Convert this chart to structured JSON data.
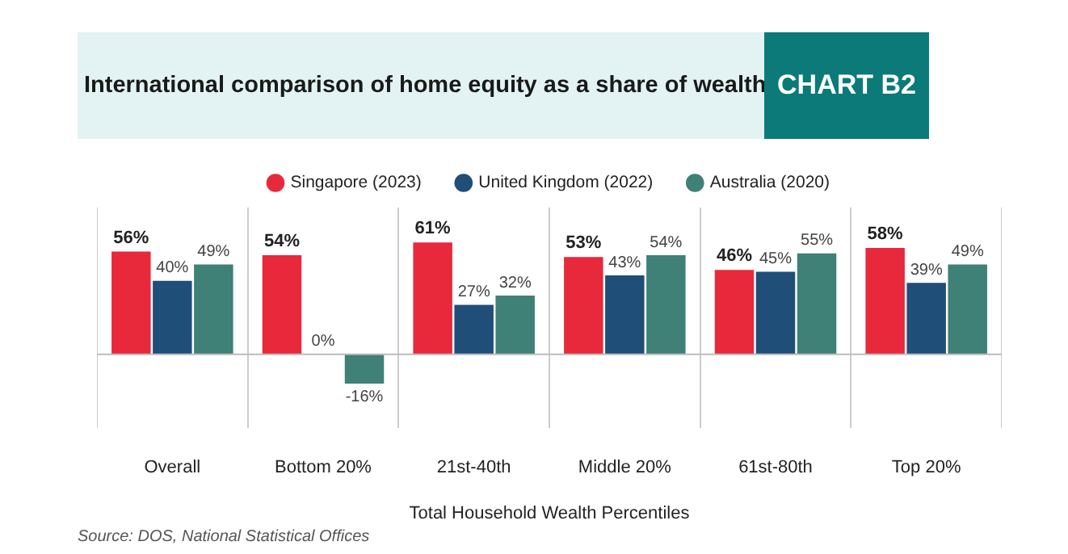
{
  "chart_data": {
    "type": "bar",
    "title": "International comparison of home equity as a share of wealth",
    "subtitle": "CHART B2",
    "xlabel": "Total Household Wealth Percentiles",
    "categories": [
      "Overall",
      "Bottom 20%",
      "21st-40th",
      "Middle 20%",
      "61st-80th",
      "Top 20%"
    ],
    "series": [
      {
        "name": "Singapore (2023)",
        "color": "#e8293b",
        "values": [
          56,
          54,
          61,
          53,
          46,
          58
        ],
        "value_labels": [
          "56%",
          "54%",
          "61%",
          "53%",
          "46%",
          "58%"
        ]
      },
      {
        "name": "United Kingdom (2022)",
        "color": "#1f4e79",
        "values": [
          40,
          0,
          27,
          43,
          45,
          39
        ],
        "value_labels": [
          "40%",
          "0%",
          "27%",
          "43%",
          "45%",
          "39%"
        ]
      },
      {
        "name": "Australia (2020)",
        "color": "#3f8077",
        "values": [
          49,
          -16,
          32,
          54,
          55,
          49
        ],
        "value_labels": [
          "49%",
          "-16%",
          "32%",
          "54%",
          "55%",
          "49%"
        ]
      }
    ],
    "annotations": [
      "Source: DOS, National Statistical Offices"
    ],
    "legend": "top",
    "grid": "x",
    "tick_labels": "x"
  }
}
